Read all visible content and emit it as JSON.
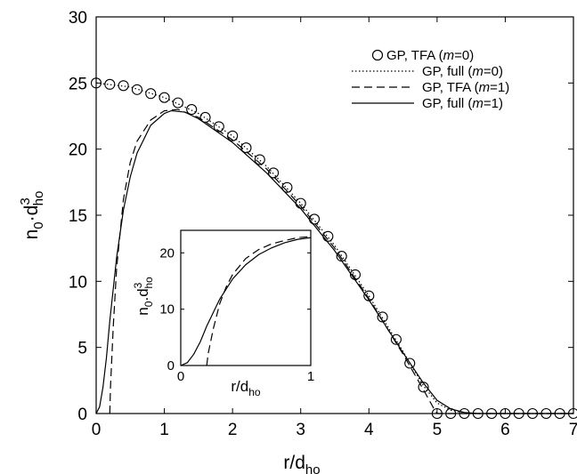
{
  "chart_data": [
    {
      "type": "line",
      "xlabel": "r/d",
      "xlabel_sub": "ho",
      "ylabel_parts": {
        "n": "n",
        "n_sub": "0",
        "dot_d": "·d",
        "sup": "3",
        "sub": "ho"
      },
      "xlim": [
        0,
        7
      ],
      "ylim": [
        0,
        30
      ],
      "xticks": [
        0,
        1,
        2,
        3,
        4,
        5,
        6,
        7
      ],
      "yticks": [
        0,
        5,
        10,
        15,
        20,
        25,
        30
      ],
      "legend_placement": "top-right",
      "grid": false,
      "series": [
        {
          "name": "GP, TFA (m=0)",
          "legend_prefix": "GP, TFA (",
          "legend_italic": "m",
          "legend_suffix": "=0)",
          "style": "circles",
          "x": [
            0,
            0.2,
            0.4,
            0.6,
            0.8,
            1.0,
            1.2,
            1.4,
            1.6,
            1.8,
            2.0,
            2.2,
            2.4,
            2.6,
            2.8,
            3.0,
            3.2,
            3.4,
            3.6,
            3.8,
            4.0,
            4.2,
            4.4,
            4.6,
            4.8,
            5.0,
            5.2,
            5.4,
            5.6,
            5.8,
            6.0,
            6.2,
            6.4,
            6.6,
            6.8,
            7.0
          ],
          "y": [
            25.0,
            24.9,
            24.8,
            24.5,
            24.2,
            23.9,
            23.5,
            23.0,
            22.4,
            21.7,
            21.0,
            20.1,
            19.2,
            18.2,
            17.1,
            15.9,
            14.7,
            13.4,
            11.9,
            10.5,
            8.9,
            7.3,
            5.6,
            3.8,
            2.0,
            0,
            0,
            0,
            0,
            0,
            0,
            0,
            0,
            0,
            0,
            0
          ]
        },
        {
          "name": "GP, full (m=0)",
          "legend_prefix": "GP, full (",
          "legend_italic": "m",
          "legend_suffix": "=0)",
          "style": "dotted",
          "x": [
            0,
            0.5,
            1.0,
            1.5,
            2.0,
            2.5,
            3.0,
            3.5,
            4.0,
            4.5,
            4.8,
            5.0,
            5.2,
            5.4,
            5.6,
            6.0,
            7.0
          ],
          "y": [
            25.0,
            24.7,
            23.9,
            22.7,
            21.0,
            18.7,
            15.9,
            12.7,
            8.9,
            4.7,
            2.1,
            0.8,
            0.25,
            0.05,
            0,
            0,
            0
          ]
        },
        {
          "name": "GP, TFA (m=1)",
          "legend_prefix": "GP, TFA (",
          "legend_italic": "m",
          "legend_suffix": "=1)",
          "style": "dashed",
          "x": [
            0.2,
            0.21,
            0.25,
            0.3,
            0.4,
            0.5,
            0.6,
            0.8,
            1.0,
            1.2,
            1.5,
            2.0,
            2.5,
            3.0,
            3.5,
            4.0,
            4.5,
            4.8,
            4.95,
            5.0,
            7.0
          ],
          "y": [
            0,
            2.0,
            6.5,
            11.0,
            16.2,
            19.0,
            20.6,
            22.2,
            22.9,
            23.0,
            22.4,
            20.7,
            18.5,
            15.7,
            12.5,
            8.7,
            4.5,
            1.8,
            0.4,
            0,
            0
          ]
        },
        {
          "name": "GP, full (m=1)",
          "legend_prefix": "GP, full (",
          "legend_italic": "m",
          "legend_suffix": "=1)",
          "style": "solid",
          "x": [
            0,
            0.05,
            0.1,
            0.15,
            0.2,
            0.3,
            0.4,
            0.5,
            0.6,
            0.8,
            1.0,
            1.1,
            1.3,
            1.5,
            2.0,
            2.5,
            3.0,
            3.5,
            4.0,
            4.5,
            4.8,
            5.0,
            5.2,
            5.4,
            5.6,
            6.0,
            7.0
          ],
          "y": [
            0,
            0.5,
            2.0,
            4.2,
            7.0,
            11.8,
            15.4,
            17.9,
            19.7,
            21.8,
            22.7,
            22.9,
            22.8,
            22.3,
            20.5,
            18.2,
            15.5,
            12.3,
            8.6,
            4.6,
            2.3,
            1.0,
            0.35,
            0.08,
            0,
            0,
            0
          ]
        }
      ]
    },
    {
      "type": "line",
      "xlabel": "r/d",
      "xlabel_sub": "ho",
      "ylabel_parts": {
        "n": "n",
        "n_sub": "0",
        "dot_d": ".d",
        "sup": "3",
        "sub": "ho"
      },
      "xlim": [
        0,
        1
      ],
      "ylim": [
        0,
        24
      ],
      "xticks": [
        0,
        1
      ],
      "yticks": [
        0,
        10,
        20
      ],
      "grid": false,
      "series": [
        {
          "style": "dashed",
          "x": [
            0.2,
            0.21,
            0.25,
            0.3,
            0.35,
            0.4,
            0.5,
            0.6,
            0.7,
            0.8,
            0.9,
            1.0
          ],
          "y": [
            0,
            2.0,
            6.5,
            11.0,
            14.0,
            16.2,
            19.0,
            20.6,
            21.6,
            22.2,
            22.7,
            22.9
          ]
        },
        {
          "style": "solid",
          "x": [
            0,
            0.05,
            0.1,
            0.15,
            0.2,
            0.3,
            0.4,
            0.5,
            0.6,
            0.7,
            0.8,
            0.9,
            1.0
          ],
          "y": [
            0,
            0.5,
            2.0,
            4.2,
            7.0,
            11.8,
            15.4,
            17.9,
            19.7,
            20.9,
            21.8,
            22.4,
            22.7
          ]
        }
      ]
    }
  ]
}
